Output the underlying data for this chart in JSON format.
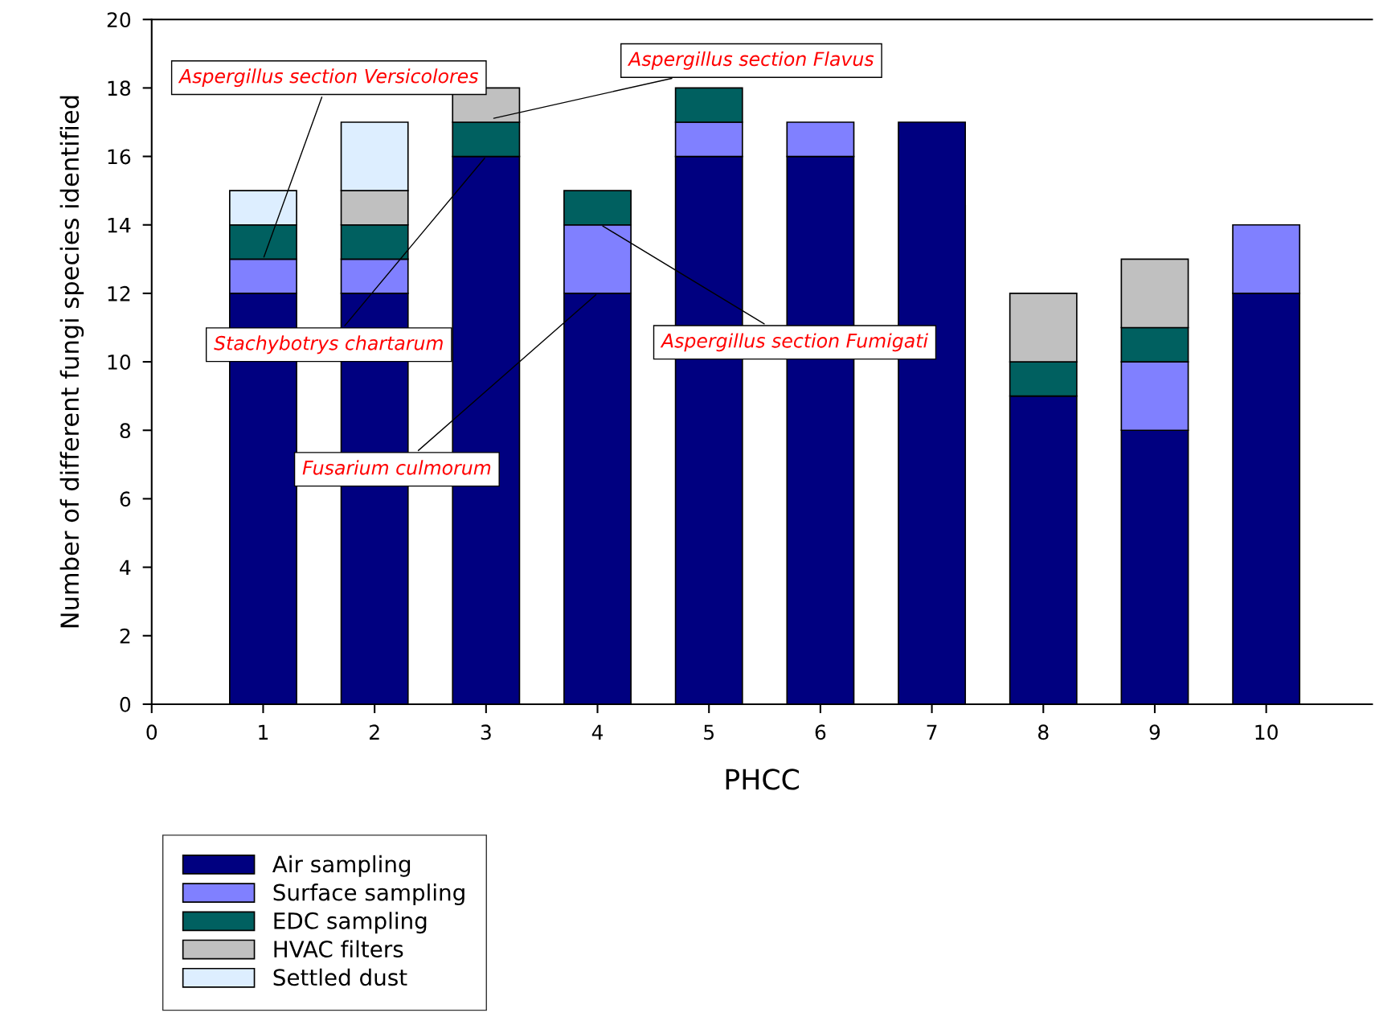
{
  "chart_data": {
    "type": "bar",
    "stacked": true,
    "xlabel": "PHCC",
    "ylabel": "Number of different fungi species identified",
    "x": [
      1,
      2,
      3,
      4,
      5,
      6,
      7,
      8,
      9,
      10
    ],
    "series": [
      {
        "name": "Air sampling",
        "color": "#000080",
        "values": [
          12,
          12,
          16,
          12,
          16,
          16,
          17,
          9,
          8,
          12
        ]
      },
      {
        "name": "Surface sampling",
        "color": "#8080ff",
        "values": [
          1,
          1,
          0,
          2,
          1,
          1,
          0,
          0,
          2,
          2
        ]
      },
      {
        "name": "EDC sampling",
        "color": "#006060",
        "values": [
          1,
          1,
          1,
          1,
          1,
          0,
          0,
          1,
          1,
          0
        ]
      },
      {
        "name": "HVAC filters",
        "color": "#c0c0c0",
        "values": [
          0,
          1,
          1,
          0,
          0,
          0,
          0,
          2,
          2,
          0
        ]
      },
      {
        "name": "Settled dust",
        "color": "#ddeeff",
        "values": [
          1,
          2,
          0,
          0,
          0,
          0,
          0,
          0,
          0,
          0
        ]
      }
    ],
    "xlim": [
      0,
      10.95
    ],
    "xticks": [
      0,
      1,
      2,
      3,
      4,
      5,
      6,
      7,
      8,
      9,
      10
    ],
    "ylim": [
      0,
      20
    ],
    "yticks": [
      0,
      2,
      4,
      6,
      8,
      10,
      12,
      14,
      16,
      18,
      20
    ],
    "grid": false,
    "legend": "bottom left",
    "annotations": [
      {
        "text": "Aspergillus section Versicolores",
        "x": 1,
        "y": 13
      },
      {
        "text": "Aspergillus section Flavus",
        "x": 3.05,
        "y": 17.1
      },
      {
        "text": "Stachybotrys chartarum",
        "x": 3,
        "y": 16
      },
      {
        "text": "Aspergillus section Fumigati",
        "x": 4.03,
        "y": 14
      },
      {
        "text": "Fusarium culmorum",
        "x": 4,
        "y": 12
      }
    ]
  }
}
